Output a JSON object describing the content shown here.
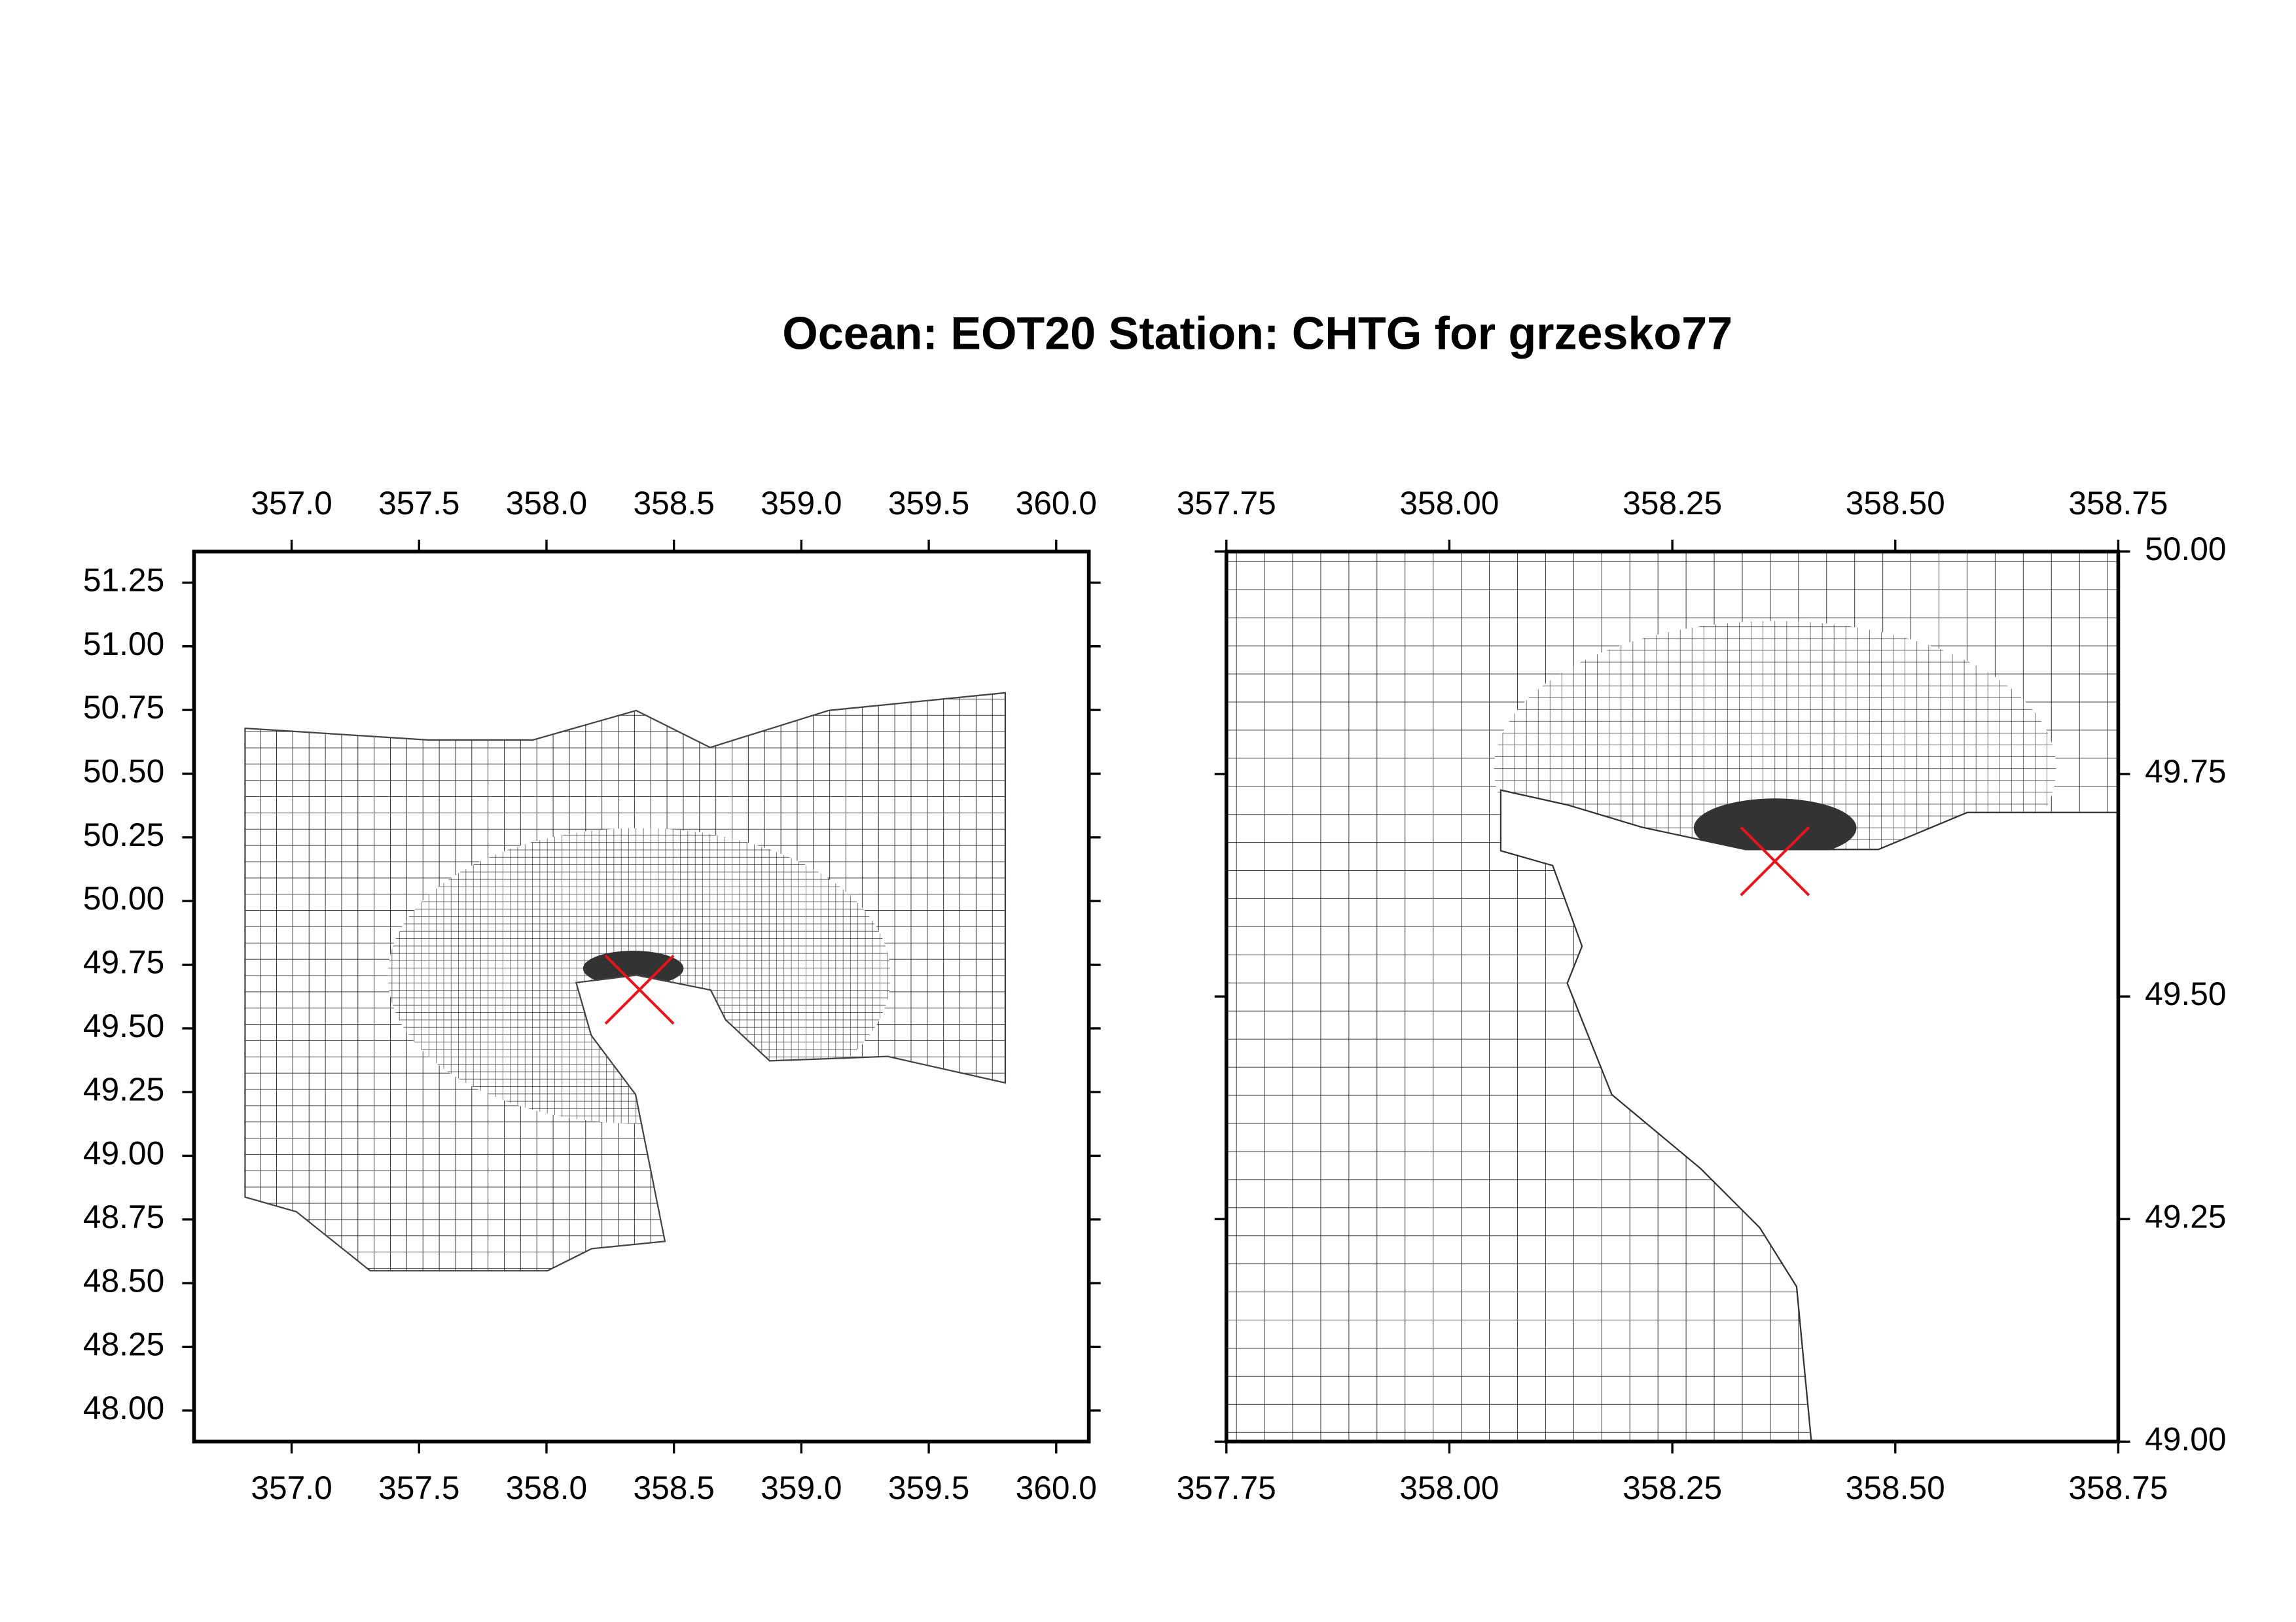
{
  "title": "Ocean: EOT20  Station: CHTG  for grzesko77",
  "chart_data": [
    {
      "type": "map",
      "xlim": [
        356.617,
        360.128
      ],
      "ylim": [
        47.878,
        51.372
      ],
      "xticks": [
        {
          "value": 357,
          "label": "357.0"
        },
        357.5,
        {
          "value": 358,
          "label": "358.0"
        },
        358.5,
        {
          "value": 359,
          "label": "359.0"
        },
        359.5,
        {
          "value": 360,
          "label": "360.0"
        }
      ],
      "yticks": [
        {
          "value": 48,
          "label": "48.00"
        },
        48.25,
        {
          "value": 48.5,
          "label": "48.50"
        },
        48.75,
        {
          "value": 49,
          "label": "49.00"
        },
        49.25,
        {
          "value": 49.5,
          "label": "49.50"
        },
        49.75,
        {
          "value": 50,
          "label": "50.00"
        },
        50.25,
        {
          "value": 50.5,
          "label": "50.50"
        },
        50.75,
        {
          "value": 51,
          "label": "51.00"
        },
        51.25
      ],
      "markers": {
        "x": [
          358.365
        ],
        "y": [
          49.652
        ],
        "color": "#e8141b"
      }
    },
    {
      "type": "map",
      "xlim": [
        357.75,
        358.75
      ],
      "ylim": [
        49,
        50
      ],
      "xticks": [
        357.75,
        {
          "value": 358,
          "label": "358.00"
        },
        358.25,
        {
          "value": 358.5,
          "label": "358.50"
        },
        358.75
      ],
      "yticks": [
        {
          "value": 49,
          "label": "49.00"
        },
        49.25,
        {
          "value": 49.5,
          "label": "49.50"
        },
        49.75,
        {
          "value": 50,
          "label": "50.00"
        }
      ],
      "markers": {
        "x": [
          358.365
        ],
        "y": [
          49.652
        ],
        "color": "#e8141b"
      }
    }
  ]
}
